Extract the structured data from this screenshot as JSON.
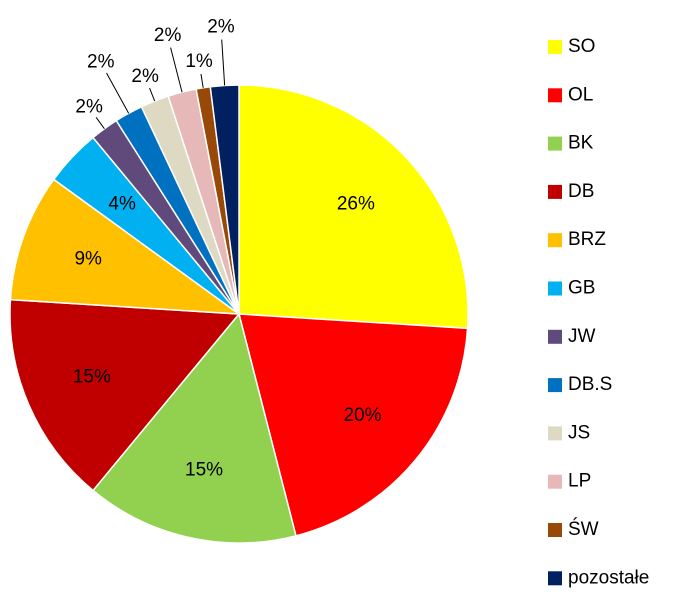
{
  "chart_data": {
    "type": "pie",
    "categories": [
      "SO",
      "OL",
      "BK",
      "DB",
      "BRZ",
      "GB",
      "JW",
      "DB.S",
      "JS",
      "LP",
      "ŚW",
      "pozostałe"
    ],
    "values": [
      26,
      20,
      15,
      15,
      9,
      4,
      2,
      2,
      2,
      2,
      1,
      2
    ],
    "value_labels": [
      "26%",
      "20%",
      "15%",
      "15%",
      "9%",
      "4%",
      "2%",
      "2%",
      "2%",
      "2%",
      "1%",
      "2%"
    ],
    "colors": [
      "#ffff00",
      "#ff0000",
      "#92d050",
      "#c00000",
      "#ffc000",
      "#00b0f0",
      "#604a7b",
      "#0070c0",
      "#ddd9c3",
      "#e6b9b8",
      "#984807",
      "#002060"
    ],
    "legend": "right"
  }
}
